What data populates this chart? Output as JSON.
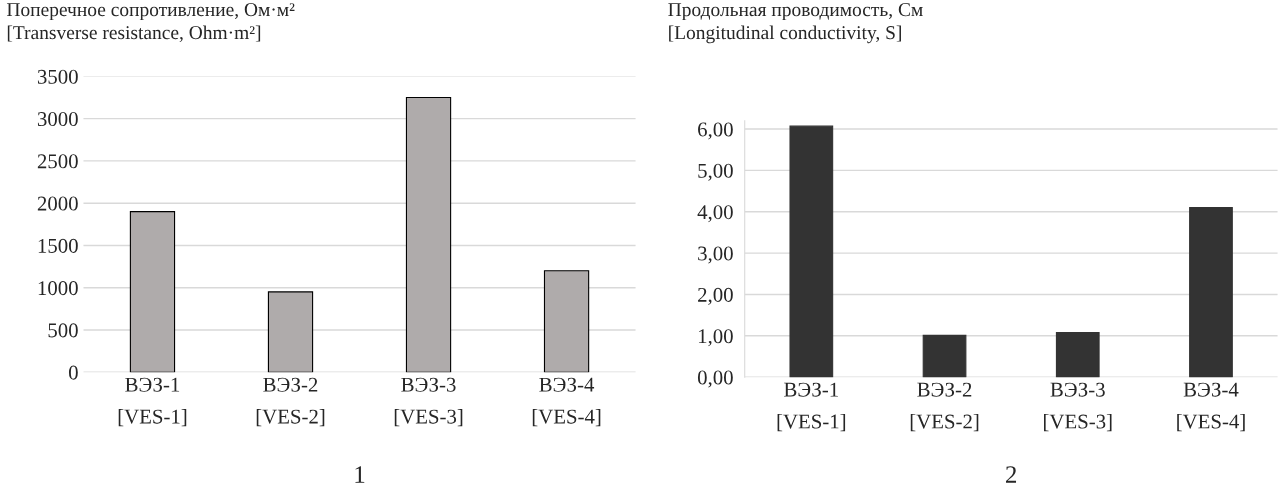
{
  "chart_data": [
    {
      "type": "bar",
      "title": "Поперечное сопротивление, Ом·м²\n[Transverse resistance, Ohm·m²]",
      "categories": [
        "ВЭЗ-1\n[VES-1]",
        "ВЭЗ-2\n[VES-2]",
        "ВЭЗ-3\n[VES-3]",
        "ВЭЗ-4\n[VES-4]"
      ],
      "values": [
        1900,
        950,
        3250,
        1200
      ],
      "color": "#afabab",
      "ylim": [
        0,
        3500
      ],
      "yticks": [
        0,
        500,
        1000,
        1500,
        2000,
        2500,
        3000,
        3500
      ],
      "grid": "y",
      "legend": false,
      "annotations": [
        "1"
      ]
    },
    {
      "type": "bar",
      "title": "Продольная проводимость, См\n[Longitudinal conductivity, S]",
      "categories": [
        "ВЭЗ-1\n[VES-1]",
        "ВЭЗ-2\n[VES-2]",
        "ВЭЗ-3\n[VES-3]",
        "ВЭЗ-4\n[VES-4]"
      ],
      "values": [
        6.07,
        1.01,
        1.08,
        4.1
      ],
      "color": "#333333",
      "ylim": [
        0,
        6.2
      ],
      "yticks": [
        {
          "value": 0,
          "label": "0,00"
        },
        {
          "value": 1,
          "label": "1,00"
        },
        {
          "value": 2,
          "label": "2,00"
        },
        {
          "value": 3,
          "label": "3,00"
        },
        {
          "value": 4,
          "label": "4,00"
        },
        {
          "value": 5,
          "label": "5,00"
        },
        {
          "value": 6,
          "label": "6,00"
        }
      ],
      "grid": "y",
      "legend": false,
      "annotations": [
        "2"
      ]
    }
  ]
}
